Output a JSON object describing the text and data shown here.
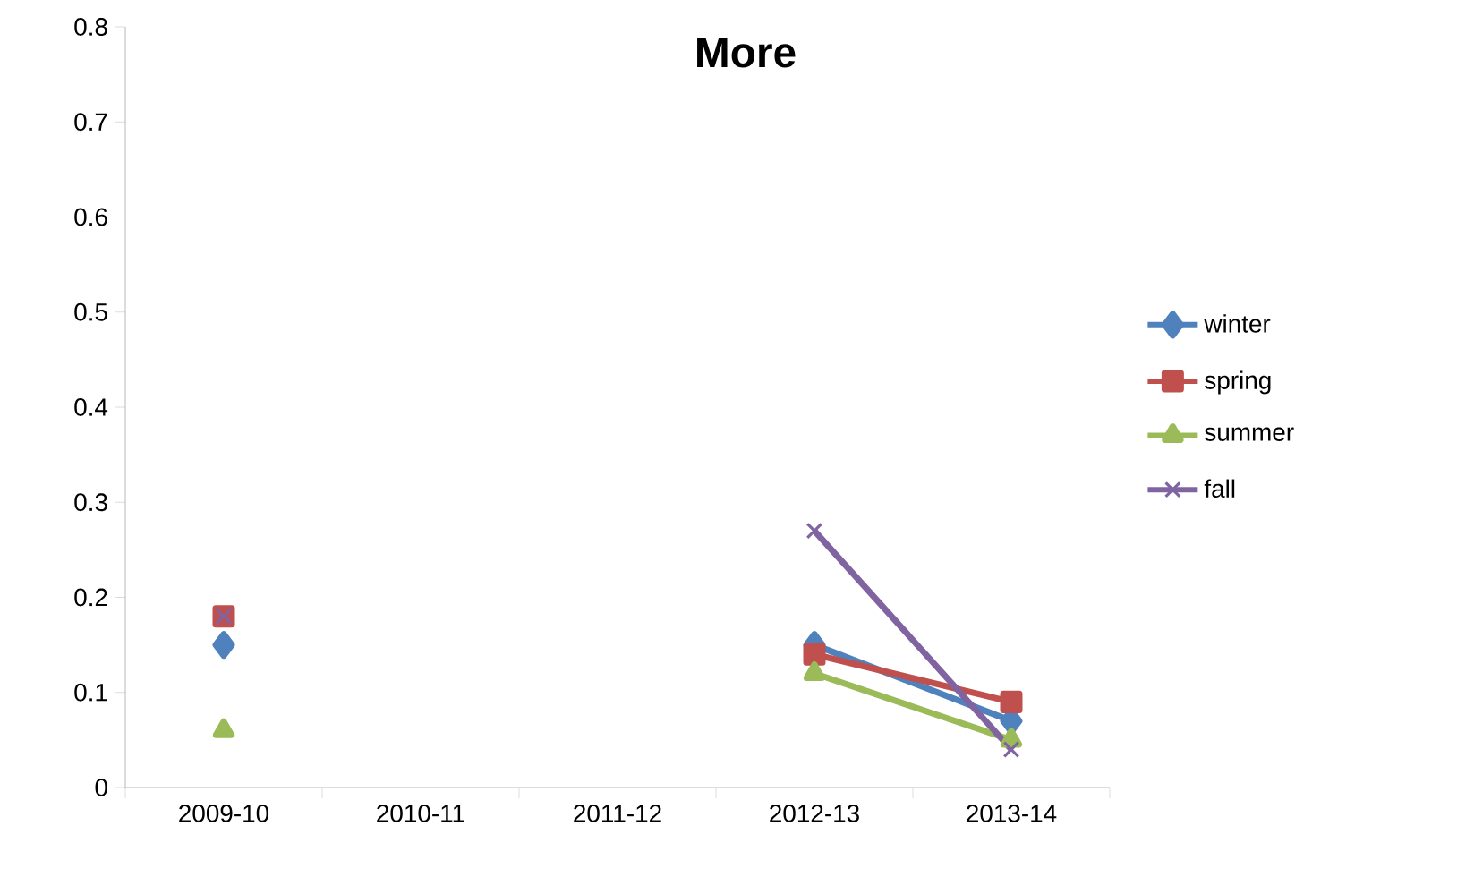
{
  "chart_data": {
    "type": "line",
    "title": "More",
    "categories": [
      "2009-10",
      "2010-11",
      "2011-12",
      "2012-13",
      "2013-14"
    ],
    "series": [
      {
        "name": "winter",
        "color": "#4f81bd",
        "marker": "diamond",
        "values": [
          0.15,
          null,
          null,
          0.15,
          0.07
        ]
      },
      {
        "name": "spring",
        "color": "#c0504d",
        "marker": "square",
        "values": [
          0.18,
          null,
          null,
          0.14,
          0.09
        ]
      },
      {
        "name": "summer",
        "color": "#9bbb59",
        "marker": "triangle",
        "values": [
          0.06,
          null,
          null,
          0.12,
          0.05
        ]
      },
      {
        "name": "fall",
        "color": "#8064a2",
        "marker": "cross",
        "values": [
          0.18,
          null,
          null,
          0.27,
          0.04
        ]
      }
    ],
    "ylim": [
      0,
      0.8
    ],
    "yticks": [
      0,
      0.1,
      0.2,
      0.3,
      0.4,
      0.5,
      0.6,
      0.7,
      0.8
    ],
    "grid": false,
    "legend": "right"
  }
}
